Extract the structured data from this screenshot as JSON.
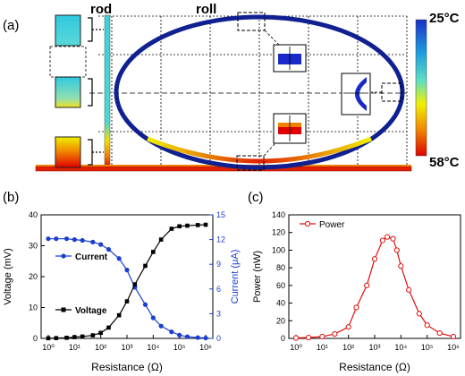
{
  "panel_labels": {
    "a": "(a)",
    "b": "(b)",
    "c": "(c)"
  },
  "panel_a": {
    "label_rod": "rod",
    "label_roll": "roll",
    "colorbar": {
      "top_label": "25°C",
      "bottom_label": "58°C"
    },
    "colors": {
      "hot": "#d40000",
      "warm": "#f0e000",
      "mid": "#3fd0d0",
      "cold": "#1020c0"
    }
  },
  "chart_data": [
    {
      "type": "line",
      "panel": "(b)",
      "xlabel": "Resistance (Ω)",
      "ylabel": "Voltage (mV)",
      "y2label": "Current (μA)",
      "xscale": "log",
      "xlim": [
        1,
        1000000
      ],
      "ylim": [
        0,
        40
      ],
      "y2lim": [
        0,
        15
      ],
      "x_ticks": [
        "10⁰",
        "10¹",
        "10²",
        "10³",
        "10⁴",
        "10⁵",
        "10⁶"
      ],
      "y_ticks": [
        "0",
        "10",
        "20",
        "30",
        "40"
      ],
      "y2_ticks": [
        "0",
        "3",
        "6",
        "9",
        "12",
        "15"
      ],
      "legend_placement": "left",
      "series": [
        {
          "name": "Current",
          "axis": "right",
          "color": "#1a3fd0",
          "marker": "circle",
          "x": [
            1,
            2,
            5,
            10,
            20,
            50,
            100,
            200,
            500,
            1000,
            2000,
            5000,
            10000,
            20000,
            50000,
            100000,
            200000,
            500000,
            1000000
          ],
          "values": [
            12.1,
            12.1,
            12.1,
            12.0,
            11.9,
            11.7,
            11.4,
            10.8,
            9.7,
            8.3,
            6.2,
            4.1,
            2.5,
            1.5,
            0.8,
            0.4,
            0.2,
            0.1,
            0.05
          ]
        },
        {
          "name": "Voltage",
          "axis": "left",
          "color": "#000000",
          "marker": "square",
          "x": [
            1,
            2,
            5,
            10,
            20,
            50,
            100,
            200,
            500,
            1000,
            2000,
            5000,
            10000,
            20000,
            50000,
            100000,
            200000,
            500000,
            1000000
          ],
          "values": [
            0.05,
            0.1,
            0.2,
            0.4,
            0.6,
            1.0,
            1.8,
            3.5,
            7.5,
            12.0,
            17.5,
            23.5,
            28.0,
            32.0,
            35.5,
            36.3,
            36.5,
            36.7,
            36.8
          ]
        }
      ]
    },
    {
      "type": "line",
      "panel": "(c)",
      "xlabel": "Resistance (Ω)",
      "ylabel": "Power (nW)",
      "xscale": "log",
      "xlim": [
        1,
        1000000
      ],
      "ylim": [
        0,
        140
      ],
      "x_ticks": [
        "10⁰",
        "10¹",
        "10²",
        "10³",
        "10⁴",
        "10⁵",
        "10⁶"
      ],
      "y_ticks": [
        "0",
        "20",
        "40",
        "60",
        "80",
        "100",
        "120",
        "140"
      ],
      "legend_placement": "top-left",
      "series": [
        {
          "name": "Power",
          "color": "#e01010",
          "marker": "circle",
          "x": [
            1,
            3,
            10,
            30,
            100,
            200,
            500,
            1000,
            2000,
            3000,
            5000,
            7000,
            10000,
            20000,
            50000,
            100000,
            300000,
            1000000
          ],
          "values": [
            0.5,
            1,
            2,
            5,
            13,
            35,
            60,
            90,
            111,
            115,
            113,
            100,
            82,
            55,
            28,
            15,
            6,
            2
          ]
        }
      ]
    }
  ]
}
